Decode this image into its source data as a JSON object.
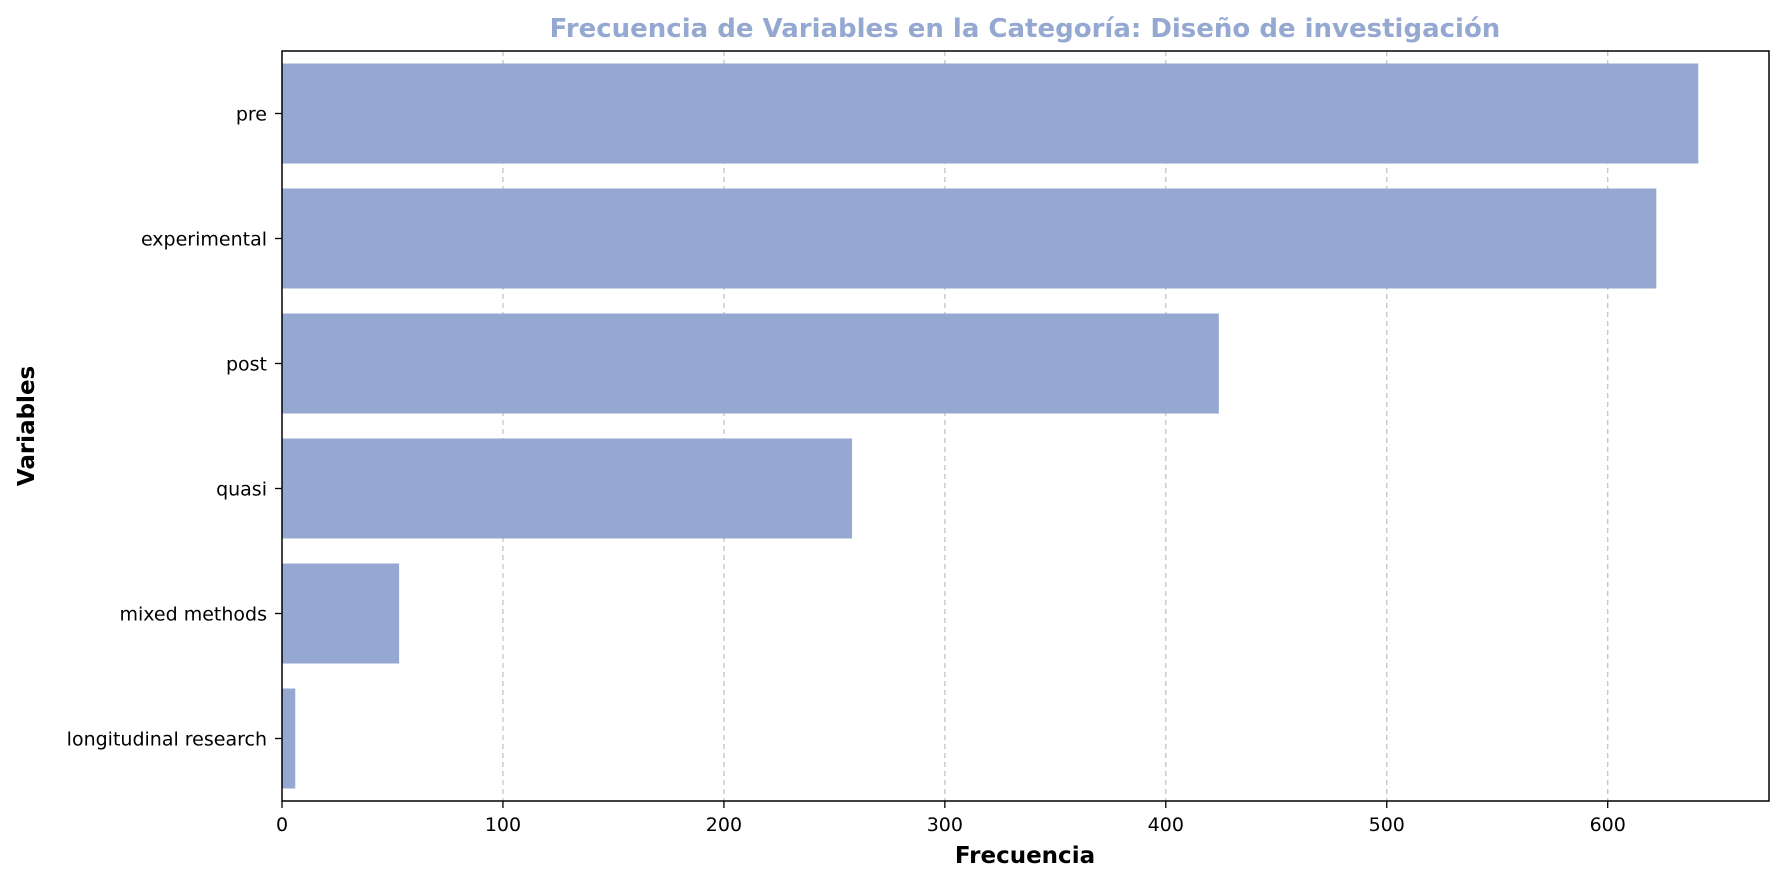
{
  "chart_data": {
    "type": "bar",
    "orientation": "horizontal",
    "title": "Frecuencia de Variables en la Categoría: Diseño de investigación",
    "xlabel": "Frecuencia",
    "ylabel": "Variables",
    "categories": [
      "pre",
      "experimental",
      "post",
      "quasi",
      "mixed methods",
      "longitudinal research"
    ],
    "values": [
      641,
      622,
      424,
      258,
      53,
      6
    ],
    "xlim": [
      0,
      673
    ],
    "xticks": [
      0,
      100,
      200,
      300,
      400,
      500,
      600
    ],
    "grid": {
      "x": true,
      "y": false,
      "style": "dashed"
    },
    "bar_color": "#94a8d1",
    "title_color": "#94a8d1"
  }
}
